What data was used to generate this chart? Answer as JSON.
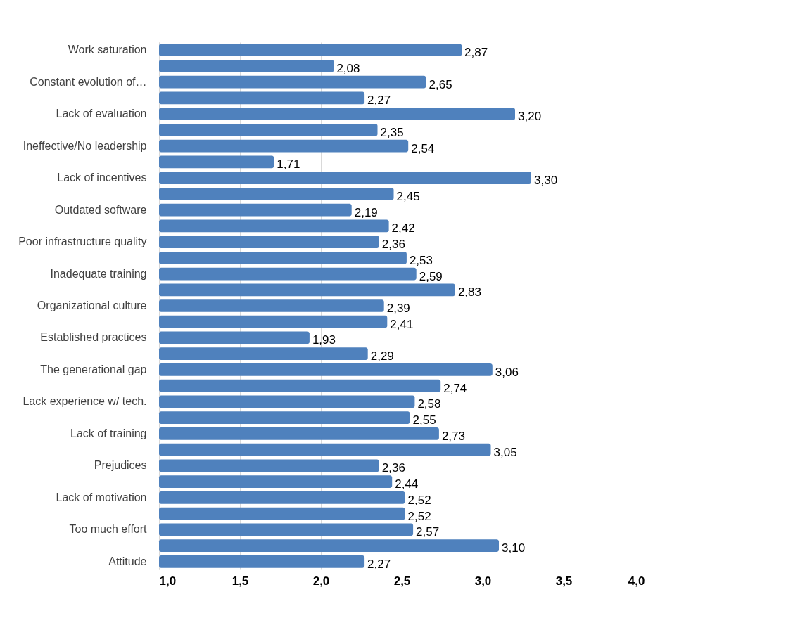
{
  "chart_data": {
    "type": "bar",
    "orientation": "horizontal",
    "color": "#4f81bd",
    "grid": "x",
    "categories": [
      "Work saturation",
      null,
      "Constant evolution of…",
      null,
      "Lack of evaluation",
      null,
      "Ineffective/No leadership",
      null,
      "Lack of incentives",
      null,
      "Outdated software",
      null,
      "Poor infrastructure quality",
      null,
      "Inadequate training",
      null,
      "Organizational culture",
      null,
      "Established practices",
      null,
      "The generational gap",
      null,
      "Lack experience w/ tech.",
      null,
      "Lack of training",
      null,
      "Prejudices",
      null,
      "Lack of motivation",
      null,
      "Too much effort",
      null,
      "Attitude"
    ],
    "values": [
      2.87,
      2.08,
      2.65,
      2.27,
      3.2,
      2.35,
      2.54,
      1.71,
      3.3,
      2.45,
      2.19,
      2.42,
      2.36,
      2.53,
      2.59,
      2.83,
      2.39,
      2.41,
      1.93,
      2.29,
      3.06,
      2.74,
      2.58,
      2.55,
      2.73,
      3.05,
      2.36,
      2.44,
      2.52,
      2.52,
      2.57,
      3.1,
      2.27
    ],
    "value_labels": [
      "2,87",
      "2,08",
      "2,65",
      "2,27",
      "3,20",
      "2,35",
      "2,54",
      "1,71",
      "3,30",
      "2,45",
      "2,19",
      "2,42",
      "2,36",
      "2,53",
      "2,59",
      "2,83",
      "2,39",
      "2,41",
      "1,93",
      "2,29",
      "3,06",
      "2,74",
      "2,58",
      "2,55",
      "2,73",
      "3,05",
      "2,36",
      "2,44",
      "2,52",
      "2,52",
      "2,57",
      "3,10",
      "2,27"
    ],
    "xlim": [
      1,
      4
    ],
    "xticks": [
      {
        "value": 1,
        "label": "1,0"
      },
      {
        "value": 1.5,
        "label": "1,5"
      },
      {
        "value": 2,
        "label": "2,0"
      },
      {
        "value": 2.5,
        "label": "2,5"
      },
      {
        "value": 3,
        "label": "3,0"
      },
      {
        "value": 3.5,
        "label": "3,5"
      },
      {
        "value": 4,
        "label": "4,0"
      }
    ]
  }
}
